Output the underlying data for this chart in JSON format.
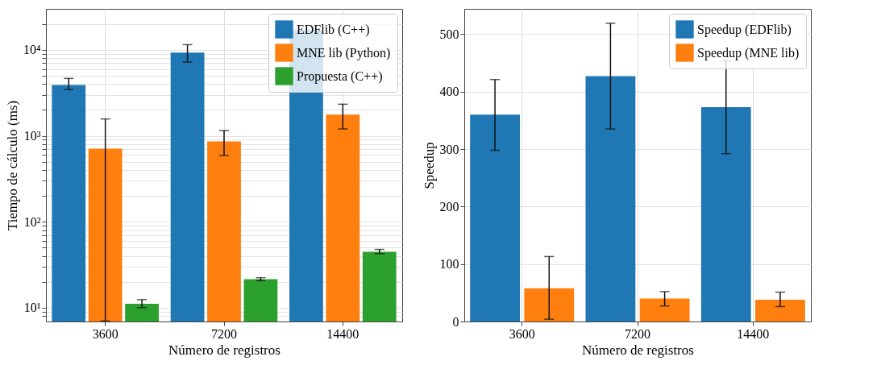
{
  "chart_data": [
    {
      "type": "bar",
      "xlabel": "Número de registros",
      "ylabel": "Tiempo de cálculo (ms)",
      "log": true,
      "grid": true,
      "legend": "top right",
      "categories": [
        "3600",
        "7200",
        "14400"
      ],
      "ylim": [
        6.9,
        30000
      ],
      "yticks": [
        {
          "value": 8,
          "label": null
        },
        {
          "value": 9,
          "label": null
        },
        {
          "value": 10,
          "label": "10¹"
        },
        {
          "value": 20,
          "label": null
        },
        {
          "value": 30,
          "label": null
        },
        {
          "value": 40,
          "label": null
        },
        {
          "value": 50,
          "label": null
        },
        {
          "value": 60,
          "label": null
        },
        {
          "value": 70,
          "label": null
        },
        {
          "value": 80,
          "label": null
        },
        {
          "value": 90,
          "label": null
        },
        {
          "value": 100,
          "label": "10²"
        },
        {
          "value": 200,
          "label": null
        },
        {
          "value": 300,
          "label": null
        },
        {
          "value": 400,
          "label": null
        },
        {
          "value": 500,
          "label": null
        },
        {
          "value": 600,
          "label": null
        },
        {
          "value": 700,
          "label": null
        },
        {
          "value": 800,
          "label": null
        },
        {
          "value": 900,
          "label": null
        },
        {
          "value": 1000,
          "label": "10³"
        },
        {
          "value": 2000,
          "label": null
        },
        {
          "value": 3000,
          "label": null
        },
        {
          "value": 4000,
          "label": null
        },
        {
          "value": 5000,
          "label": null
        },
        {
          "value": 6000,
          "label": null
        },
        {
          "value": 7000,
          "label": null
        },
        {
          "value": 8000,
          "label": null
        },
        {
          "value": 9000,
          "label": null
        },
        {
          "value": 10000,
          "label": "10⁴"
        },
        {
          "value": 20000,
          "label": null
        }
      ],
      "series": [
        {
          "name": "EDFlib (C++)",
          "color": "#1f77b4",
          "values": [
            3900,
            9300,
            17000
          ],
          "errors": [
            [
              3450,
              4650
            ],
            [
              7200,
              11500
            ],
            null
          ]
        },
        {
          "name": "MNE lib (Python)",
          "color": "#ff7f0e",
          "values": [
            710,
            860,
            1760
          ],
          "errors": [
            [
              7,
              1570
            ],
            [
              590,
              1150
            ],
            [
              1200,
              2330
            ]
          ]
        },
        {
          "name": "Propuesta (C++)",
          "color": "#2ca02c",
          "values": [
            11.1,
            21.4,
            44.6
          ],
          "errors": [
            [
              10,
              12.4
            ],
            [
              20.6,
              22.3
            ],
            [
              42.5,
              47.6
            ]
          ]
        }
      ]
    },
    {
      "type": "bar",
      "xlabel": "Número de registros",
      "ylabel": "Speedup",
      "grid": true,
      "legend": "top right",
      "categories": [
        "3600",
        "7200",
        "14400"
      ],
      "ylim": [
        0,
        544
      ],
      "yticks": [
        0,
        100,
        200,
        300,
        400,
        500
      ],
      "series": [
        {
          "name": "Speedup (EDFlib)",
          "color": "#1f77b4",
          "values": [
            360,
            427,
            373
          ],
          "errors": [
            [
              298,
              421
            ],
            [
              335,
              519
            ],
            [
              292,
              454
            ]
          ]
        },
        {
          "name": "Speedup (MNE lib)",
          "color": "#ff7f0e",
          "values": [
            58,
            40,
            38
          ],
          "errors": [
            [
              4,
              113
            ],
            [
              27,
              52
            ],
            [
              26,
              51
            ]
          ]
        }
      ]
    }
  ]
}
